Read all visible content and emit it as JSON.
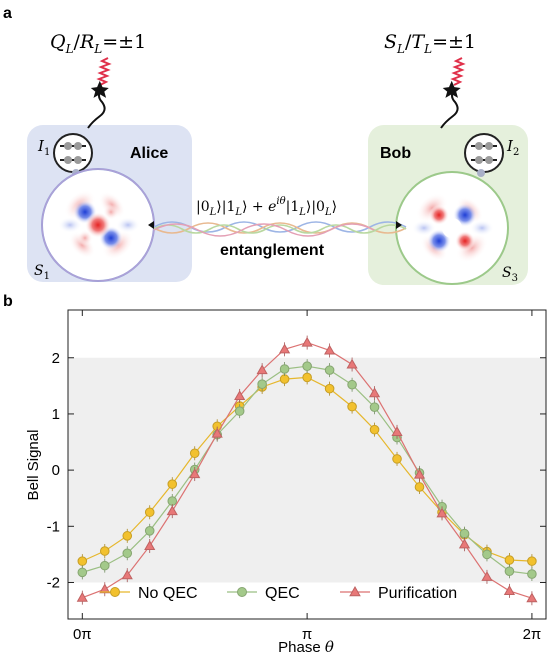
{
  "panel_a": {
    "label": "a",
    "alice": "Alice",
    "bob": "Bob",
    "left_measure": "Q_L/R_L=±1",
    "right_measure": "S_L/T_L=±1",
    "ancilla_left": "I1",
    "ancilla_right": "I2",
    "storage_left": "S1",
    "storage_right": "S3",
    "state": "|0_L⟩|1_L⟩ + e^{iθ}|1_L⟩|0_L⟩",
    "entanglement": "entanglement",
    "colors": {
      "alice_box": "#dde3f3",
      "bob_box": "#e5f0dc",
      "readout_wave": "#e0304a"
    }
  },
  "panel_b": {
    "label": "b"
  },
  "chart_data": {
    "type": "line",
    "title": "",
    "xlabel": "Phase θ",
    "ylabel": "Bell Signal",
    "xlim": [
      -0.2,
      6.48
    ],
    "ylim": [
      -2.65,
      2.85
    ],
    "x_ticks": [
      0,
      3.14159,
      6.28318
    ],
    "x_tick_labels": [
      "0π",
      "π",
      "2π"
    ],
    "y_ticks": [
      -2,
      -1,
      0,
      1,
      2
    ],
    "y_tick_labels": [
      "-2",
      "-1",
      "0",
      "1",
      "2"
    ],
    "shaded_band": [
      -2,
      2
    ],
    "legend_position": "bottom",
    "series": [
      {
        "name": "No QEC",
        "marker": "circle",
        "color": "#f2c12e",
        "x": [
          0,
          0.314,
          0.628,
          0.942,
          1.257,
          1.571,
          1.885,
          2.199,
          2.513,
          2.827,
          3.142,
          3.456,
          3.77,
          4.084,
          4.398,
          4.712,
          5.027,
          5.341,
          5.655,
          5.969,
          6.283
        ],
        "y": [
          -1.62,
          -1.44,
          -1.17,
          -0.75,
          -0.25,
          0.3,
          0.78,
          1.14,
          1.48,
          1.62,
          1.65,
          1.45,
          1.13,
          0.72,
          0.2,
          -0.3,
          -0.75,
          -1.15,
          -1.45,
          -1.6,
          -1.62
        ]
      },
      {
        "name": "QEC",
        "marker": "circle",
        "color": "#a3c98a",
        "x": [
          0,
          0.314,
          0.628,
          0.942,
          1.257,
          1.571,
          1.885,
          2.199,
          2.513,
          2.827,
          3.142,
          3.456,
          3.77,
          4.084,
          4.398,
          4.712,
          5.027,
          5.341,
          5.655,
          5.969,
          6.283
        ],
        "y": [
          -1.82,
          -1.7,
          -1.48,
          -1.08,
          -0.55,
          0.01,
          0.63,
          1.05,
          1.53,
          1.8,
          1.85,
          1.78,
          1.52,
          1.12,
          0.58,
          -0.05,
          -0.65,
          -1.13,
          -1.5,
          -1.8,
          -1.85
        ]
      },
      {
        "name": "Purification",
        "marker": "triangle",
        "color": "#e87878",
        "x": [
          0,
          0.314,
          0.628,
          0.942,
          1.257,
          1.571,
          1.885,
          2.199,
          2.513,
          2.827,
          3.142,
          3.456,
          3.77,
          4.084,
          4.398,
          4.712,
          5.027,
          5.341,
          5.655,
          5.969,
          6.283
        ],
        "y": [
          -2.27,
          -2.12,
          -1.87,
          -1.35,
          -0.73,
          -0.07,
          0.65,
          1.32,
          1.78,
          2.15,
          2.27,
          2.13,
          1.88,
          1.37,
          0.68,
          -0.08,
          -0.77,
          -1.32,
          -1.9,
          -2.15,
          -2.28
        ]
      }
    ]
  }
}
